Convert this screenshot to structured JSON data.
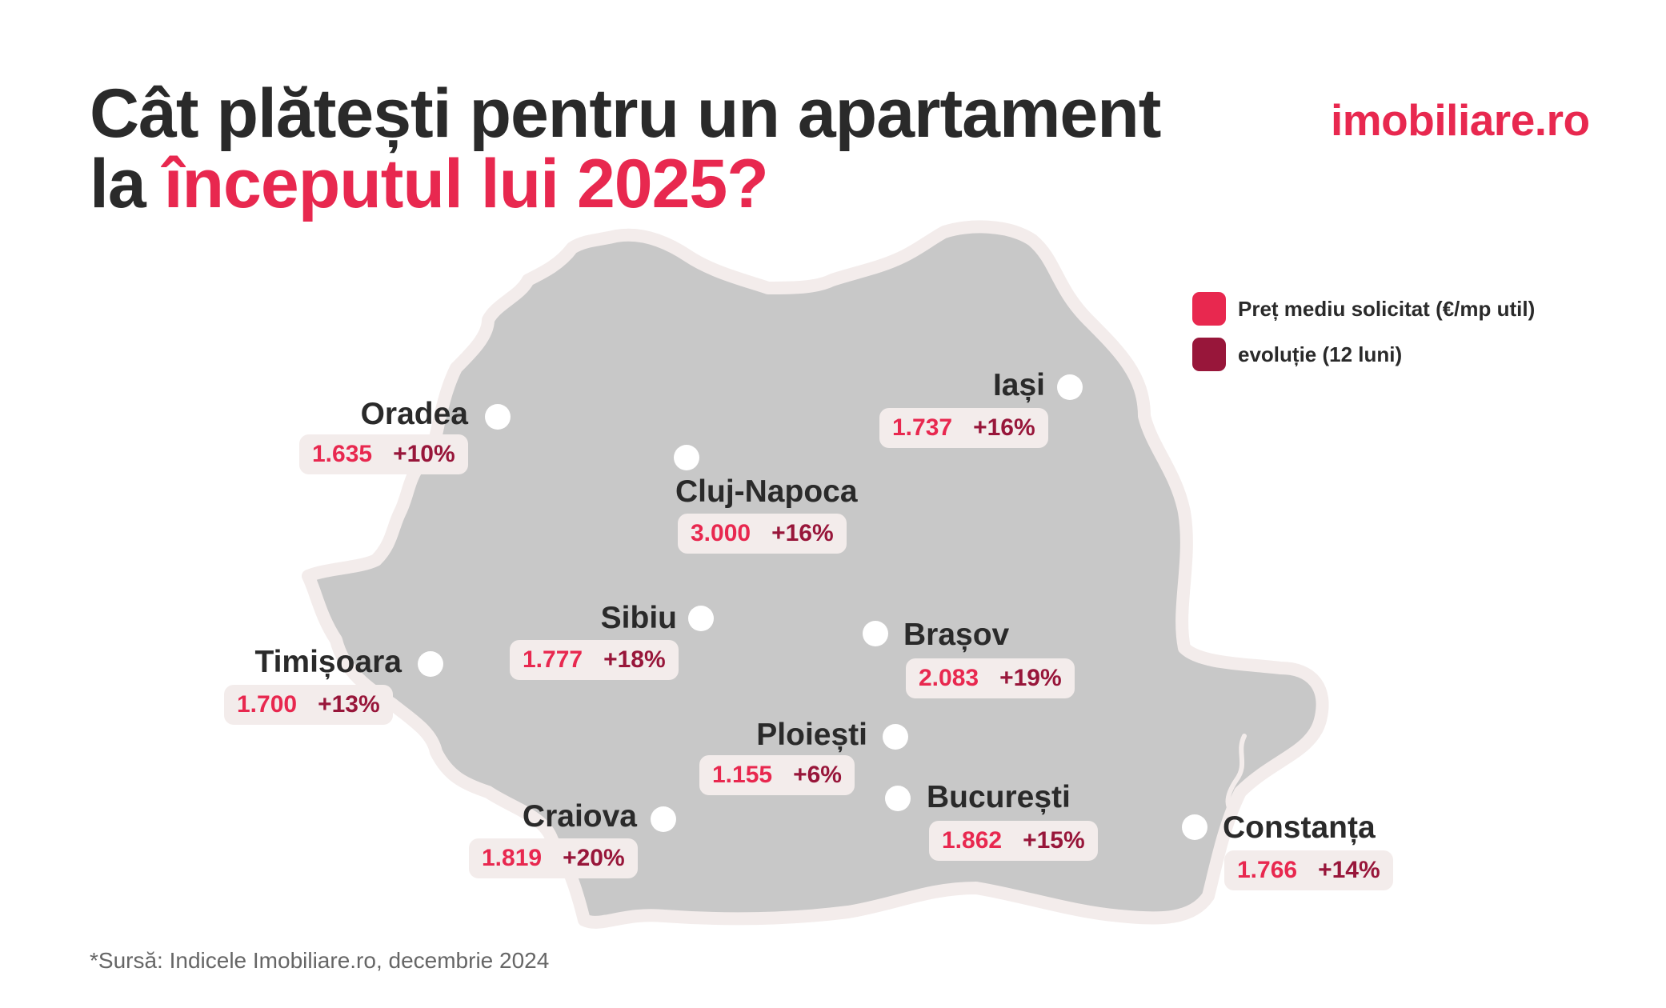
{
  "title": {
    "line1": "Cât plătești pentru un apartament",
    "line2_prefix": "la ",
    "line2_accent": "începutul lui 2025?"
  },
  "logo": "imobiliare.ro",
  "legend": {
    "items": [
      {
        "label": "Preț mediu solicitat (€/mp util)",
        "color": "#e8284f"
      },
      {
        "label": "evoluție (12 luni)",
        "color": "#98163a"
      }
    ]
  },
  "cities": [
    {
      "name": "Oradea",
      "price": "1.635",
      "change": "+10%"
    },
    {
      "name": "Iași",
      "price": "1.737",
      "change": "+16%"
    },
    {
      "name": "Cluj-Napoca",
      "price": "3.000",
      "change": "+16%"
    },
    {
      "name": "Sibiu",
      "price": "1.777",
      "change": "+18%"
    },
    {
      "name": "Brașov",
      "price": "2.083",
      "change": "+19%"
    },
    {
      "name": "Timișoara",
      "price": "1.700",
      "change": "+13%"
    },
    {
      "name": "Ploiești",
      "price": "1.155",
      "change": "+6%"
    },
    {
      "name": "București",
      "price": "1.862",
      "change": "+15%"
    },
    {
      "name": "Craiova",
      "price": "1.819",
      "change": "+20%"
    },
    {
      "name": "Constanța",
      "price": "1.766",
      "change": "+14%"
    }
  ],
  "source": "*Sursă: Indicele Imobiliare.ro, decembrie 2024",
  "colors": {
    "accent": "#e8284f",
    "evolution": "#98163a",
    "map_fill": "#c8c8c8",
    "map_border": "#f3eceb",
    "pill_bg": "#f3eceb",
    "text": "#2a2a2a"
  }
}
